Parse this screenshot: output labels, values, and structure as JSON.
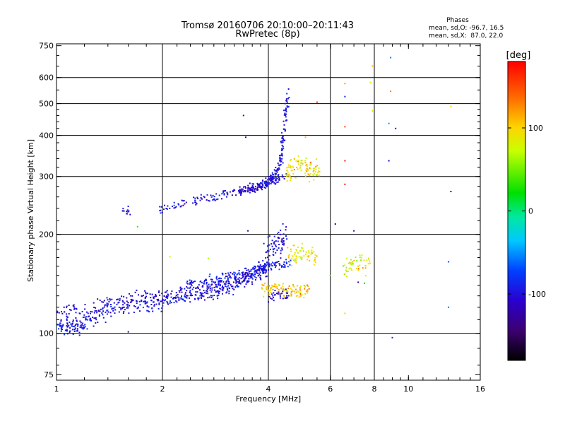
{
  "chart_data": {
    "type": "scatter",
    "title": "Tromsø 20160706 20:10:00–20:11:43",
    "subtitle": "RwPretec (8p)",
    "legend_note": {
      "title": "Phases",
      "line1": "mean, sd,O: -96.7, 16.5",
      "line2": "mean, sd,X:  87.0, 22.0"
    },
    "xlabel": "Frequency [MHz]",
    "ylabel": "Stationary phase Virtual Height [km]",
    "x_scale": "log",
    "y_scale": "log",
    "xlim": [
      1,
      16
    ],
    "ylim": [
      72,
      760
    ],
    "x_ticks": [
      1,
      2,
      4,
      6,
      8,
      10,
      16
    ],
    "y_ticks": [
      75,
      100,
      200,
      300,
      400,
      500,
      600,
      750
    ],
    "x_gridlines": [
      2,
      4,
      6,
      8
    ],
    "y_gridlines": [
      100,
      200,
      300,
      400,
      500,
      600
    ],
    "grid": true,
    "colorbar": {
      "label": "[deg]",
      "range": [
        -180,
        180
      ],
      "ticks": [
        100,
        0,
        -100
      ],
      "colormap": "rainbow"
    },
    "traces": [
      {
        "f": [
          1.0,
          1.05,
          1.1,
          1.15,
          1.2,
          1.3,
          1.4,
          1.55,
          1.7,
          1.85,
          2.0,
          2.2,
          2.4,
          2.6,
          2.8,
          3.0,
          3.2,
          3.4,
          3.6,
          3.8,
          3.95
        ],
        "h": [
          106,
          105,
          104,
          105,
          107,
          112,
          117,
          120,
          122,
          123,
          125,
          127,
          129,
          131,
          134,
          137,
          141,
          146,
          150,
          154,
          158
        ],
        "spread": 0.04,
        "phase": -100,
        "phase_sd": 18,
        "density": 22
      },
      {
        "f": [
          1.0,
          1.1,
          1.25,
          1.4,
          1.6,
          1.8,
          2.0,
          2.2,
          2.4,
          2.6,
          2.8,
          3.0,
          3.2,
          3.4,
          3.6,
          3.8,
          4.0
        ],
        "h": [
          115,
          116,
          118,
          123,
          128,
          130,
          131,
          133,
          136,
          139,
          141,
          144,
          146,
          149,
          152,
          157,
          162
        ],
        "spread": 0.035,
        "phase": -105,
        "phase_sd": 15,
        "density": 18
      },
      {
        "f": [
          2.3,
          2.6,
          2.9,
          3.2,
          3.5,
          3.8,
          4.0,
          4.2,
          4.4,
          4.6
        ],
        "h": [
          141,
          144,
          148,
          150,
          153,
          157,
          160,
          162,
          163,
          164
        ],
        "spread": 0.025,
        "phase": -95,
        "phase_sd": 20,
        "density": 14
      },
      {
        "f": [
          1.55,
          1.58,
          1.61
        ],
        "h": [
          238,
          236,
          234
        ],
        "spread": 0.02,
        "phase": -105,
        "phase_sd": 10,
        "density": 6
      },
      {
        "f": [
          1.95,
          2.1,
          2.3,
          2.5,
          2.7,
          2.9,
          3.1,
          3.3,
          3.5,
          3.7,
          3.9,
          4.1,
          4.3,
          4.5
        ],
        "h": [
          237,
          242,
          248,
          254,
          258,
          262,
          266,
          270,
          275,
          280,
          285,
          290,
          296,
          303
        ],
        "spread": 0.025,
        "phase": -100,
        "phase_sd": 22,
        "density": 12
      },
      {
        "f": [
          3.3,
          3.45,
          3.6,
          3.75,
          3.9
        ],
        "h": [
          272,
          273,
          276,
          278,
          282
        ],
        "spread": 0.02,
        "phase": -115,
        "phase_sd": 12,
        "density": 16
      },
      {
        "f": [
          3.9,
          4.0,
          4.1,
          4.2,
          4.3,
          4.35,
          4.4,
          4.45,
          4.5,
          4.55
        ],
        "h": [
          285,
          290,
          296,
          304,
          320,
          345,
          380,
          420,
          480,
          560
        ],
        "spread": 0.03,
        "phase": -100,
        "phase_sd": 14,
        "density": 16
      },
      {
        "f": [
          4.5,
          4.6,
          4.8,
          5.0,
          5.2,
          5.4,
          5.6
        ],
        "h": [
          305,
          312,
          320,
          322,
          318,
          312,
          306
        ],
        "spread": 0.05,
        "phase": 95,
        "phase_sd": 25,
        "density": 16
      },
      {
        "f": [
          3.9,
          4.05,
          4.2,
          4.35,
          4.5
        ],
        "h": [
          175,
          182,
          188,
          192,
          196
        ],
        "spread": 0.06,
        "phase": -100,
        "phase_sd": 15,
        "density": 16
      },
      {
        "f": [
          4.5,
          4.7,
          4.9,
          5.1,
          5.3,
          5.5
        ],
        "h": [
          168,
          172,
          175,
          176,
          173,
          170
        ],
        "spread": 0.05,
        "phase": 90,
        "phase_sd": 22,
        "density": 14
      },
      {
        "f": [
          3.8,
          4.0,
          4.2,
          4.4,
          4.6,
          4.8,
          5.0,
          5.2
        ],
        "h": [
          139,
          138,
          136,
          135,
          134,
          134,
          135,
          136
        ],
        "spread": 0.04,
        "phase": 105,
        "phase_sd": 25,
        "density": 14
      },
      {
        "f": [
          4.0,
          4.2,
          4.4,
          4.6
        ],
        "h": [
          128,
          130,
          131,
          132
        ],
        "spread": 0.03,
        "phase": -110,
        "phase_sd": 15,
        "density": 10
      },
      {
        "f": [
          6.5,
          6.7,
          6.9,
          7.1,
          7.3,
          7.6,
          7.9
        ],
        "h": [
          158,
          160,
          162,
          163,
          163,
          162,
          160
        ],
        "spread": 0.05,
        "phase": 80,
        "phase_sd": 40,
        "density": 8
      }
    ],
    "scattered_points": [
      {
        "f": 6.6,
        "h": 575,
        "phase": 120
      },
      {
        "f": 7.9,
        "h": 650,
        "phase": 110
      },
      {
        "f": 8.9,
        "h": 690,
        "phase": -60
      },
      {
        "f": 7.8,
        "h": 580,
        "phase": 70
      },
      {
        "f": 8.9,
        "h": 545,
        "phase": 130
      },
      {
        "f": 5.5,
        "h": 505,
        "phase": 160
      },
      {
        "f": 7.9,
        "h": 475,
        "phase": 90
      },
      {
        "f": 6.6,
        "h": 525,
        "phase": -90
      },
      {
        "f": 8.8,
        "h": 435,
        "phase": -50
      },
      {
        "f": 9.2,
        "h": 420,
        "phase": -110
      },
      {
        "f": 6.6,
        "h": 425,
        "phase": 150
      },
      {
        "f": 6.6,
        "h": 335,
        "phase": 170
      },
      {
        "f": 8.8,
        "h": 335,
        "phase": -120
      },
      {
        "f": 13.2,
        "h": 490,
        "phase": 100
      },
      {
        "f": 13.2,
        "h": 270,
        "phase": -140
      },
      {
        "f": 6.6,
        "h": 284,
        "phase": 175
      },
      {
        "f": 6.2,
        "h": 215,
        "phase": -130
      },
      {
        "f": 7.0,
        "h": 205,
        "phase": -110
      },
      {
        "f": 13.0,
        "h": 165,
        "phase": -70
      },
      {
        "f": 13.0,
        "h": 120,
        "phase": -60
      },
      {
        "f": 9.0,
        "h": 97,
        "phase": -90
      },
      {
        "f": 6.6,
        "h": 115,
        "phase": 100
      },
      {
        "f": 3.4,
        "h": 460,
        "phase": -120
      },
      {
        "f": 3.45,
        "h": 395,
        "phase": -110
      },
      {
        "f": 1.7,
        "h": 211,
        "phase": 30
      },
      {
        "f": 2.7,
        "h": 169,
        "phase": 60
      },
      {
        "f": 2.1,
        "h": 171,
        "phase": 70
      },
      {
        "f": 7.2,
        "h": 143,
        "phase": -130
      },
      {
        "f": 7.5,
        "h": 142,
        "phase": 20
      },
      {
        "f": 6.0,
        "h": 150,
        "phase": 40
      },
      {
        "f": 4.4,
        "h": 330,
        "phase": -100
      },
      {
        "f": 5.1,
        "h": 395,
        "phase": 110
      },
      {
        "f": 1.6,
        "h": 101,
        "phase": -140
      },
      {
        "f": 3.5,
        "h": 205,
        "phase": -120
      }
    ]
  }
}
